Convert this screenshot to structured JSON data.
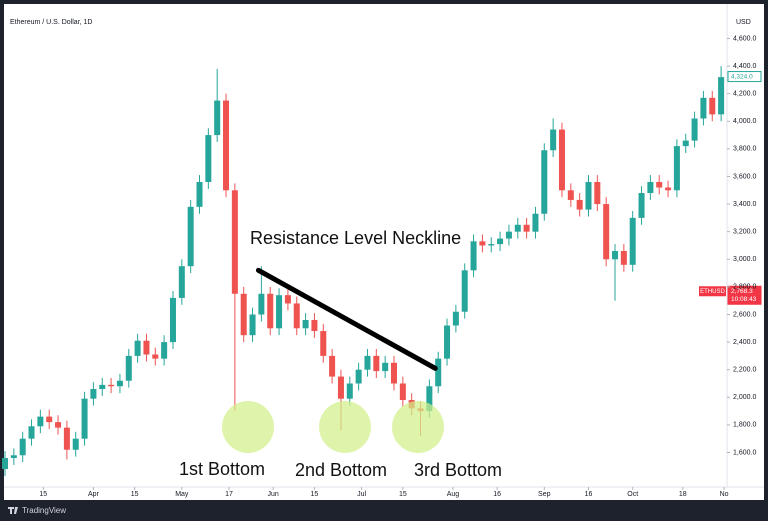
{
  "chart_data": {
    "type": "candlestick",
    "title": "Ethereum / U.S. Dollar, 1D",
    "currency": "USD",
    "up_color": "#26a69a",
    "down_color": "#ef5350",
    "grid": false,
    "x": [
      1,
      4,
      7,
      10,
      13,
      16,
      19,
      22,
      25,
      28,
      31,
      34,
      37,
      40,
      43,
      46,
      49,
      52,
      55,
      58,
      61,
      64,
      67,
      70,
      73,
      76,
      79,
      82,
      85,
      88,
      91,
      94,
      97,
      100,
      103,
      106,
      109,
      112,
      115,
      118,
      121,
      124,
      127,
      130,
      133,
      136,
      139,
      142,
      145,
      148,
      151,
      154,
      157,
      160,
      163,
      166,
      169,
      172,
      175,
      178,
      181,
      184,
      187,
      190,
      193,
      196,
      199,
      202,
      205,
      208,
      211,
      214,
      217,
      220,
      223,
      226,
      229,
      232,
      235,
      238,
      241,
      244
    ],
    "open": [
      1480,
      1560,
      1580,
      1700,
      1790,
      1860,
      1820,
      1780,
      1620,
      1700,
      1990,
      2060,
      2090,
      2080,
      2120,
      2300,
      2410,
      2310,
      2280,
      2400,
      2720,
      2950,
      3380,
      3560,
      3900,
      4150,
      3500,
      2750,
      2450,
      2600,
      2750,
      2500,
      2740,
      2680,
      2500,
      2560,
      2480,
      2300,
      2150,
      1990,
      2100,
      2200,
      2300,
      2190,
      2250,
      2100,
      1980,
      1920,
      1900,
      2080,
      2280,
      2520,
      2620,
      2920,
      3130,
      3100,
      3110,
      3150,
      3200,
      3250,
      3200,
      3330,
      3790,
      3940,
      3500,
      3430,
      3360,
      3560,
      3400,
      3000,
      3060,
      2960,
      3300,
      3480,
      3560,
      3520,
      3500,
      3820,
      3860,
      4020,
      4170,
      4050
    ],
    "high": [
      1610,
      1630,
      1750,
      1840,
      1910,
      1910,
      1870,
      1830,
      1750,
      2040,
      2110,
      2140,
      2140,
      2170,
      2350,
      2460,
      2460,
      2360,
      2450,
      2770,
      3000,
      3430,
      3610,
      3950,
      4380,
      4200,
      3550,
      2800,
      2650,
      2950,
      2800,
      2790,
      2790,
      2730,
      2610,
      2610,
      2530,
      2350,
      2200,
      2150,
      2250,
      2350,
      2350,
      2300,
      2300,
      2150,
      2030,
      1970,
      2130,
      2330,
      2570,
      2670,
      2970,
      3180,
      3180,
      3160,
      3200,
      3250,
      3300,
      3300,
      3380,
      3840,
      4020,
      3990,
      3550,
      3480,
      3610,
      3610,
      3450,
      3110,
      3110,
      3350,
      3530,
      3610,
      3610,
      3570,
      3870,
      3910,
      4070,
      4220,
      4220,
      4400
    ],
    "low": [
      1430,
      1510,
      1530,
      1650,
      1740,
      1770,
      1730,
      1550,
      1570,
      1650,
      1940,
      2010,
      2030,
      2030,
      2070,
      2250,
      2260,
      2230,
      2230,
      2350,
      2670,
      2900,
      3330,
      3510,
      3850,
      3450,
      1900,
      2400,
      2400,
      2550,
      2450,
      2450,
      2630,
      2450,
      2450,
      2430,
      2250,
      2100,
      1760,
      1940,
      2050,
      2150,
      2140,
      2140,
      2050,
      1930,
      1870,
      1720,
      1850,
      2030,
      2230,
      2470,
      2570,
      2870,
      3050,
      3050,
      3060,
      3100,
      3150,
      3150,
      3150,
      3280,
      3740,
      3450,
      3380,
      3310,
      3310,
      3350,
      2950,
      2700,
      2910,
      2910,
      3250,
      3430,
      3470,
      3450,
      3450,
      3770,
      3810,
      3970,
      4000,
      4000
    ],
    "close": [
      1560,
      1580,
      1700,
      1790,
      1860,
      1820,
      1780,
      1620,
      1700,
      1990,
      2060,
      2090,
      2080,
      2120,
      2300,
      2410,
      2310,
      2280,
      2400,
      2720,
      2950,
      3380,
      3560,
      3900,
      4150,
      3500,
      2750,
      2450,
      2600,
      2750,
      2500,
      2740,
      2680,
      2500,
      2560,
      2480,
      2300,
      2150,
      1990,
      2100,
      2200,
      2300,
      2190,
      2250,
      2100,
      1980,
      1920,
      1900,
      2080,
      2280,
      2520,
      2620,
      2920,
      3130,
      3100,
      3110,
      3150,
      3200,
      3250,
      3200,
      3330,
      3790,
      3940,
      3500,
      3430,
      3360,
      3560,
      3400,
      3000,
      3060,
      2960,
      3300,
      3480,
      3560,
      3520,
      3500,
      3820,
      3860,
      4020,
      4170,
      4050,
      4320
    ],
    "xlim": [
      1,
      246
    ],
    "xticks": [
      {
        "value": 14,
        "label": "15"
      },
      {
        "value": 31,
        "label": "Apr"
      },
      {
        "value": 45,
        "label": "15"
      },
      {
        "value": 61,
        "label": "May"
      },
      {
        "value": 77,
        "label": "17"
      },
      {
        "value": 92,
        "label": "Jun"
      },
      {
        "value": 106,
        "label": "15"
      },
      {
        "value": 122,
        "label": "Jul"
      },
      {
        "value": 136,
        "label": "15"
      },
      {
        "value": 153,
        "label": "Aug"
      },
      {
        "value": 168,
        "label": "16"
      },
      {
        "value": 184,
        "label": "Sep"
      },
      {
        "value": 199,
        "label": "16"
      },
      {
        "value": 214,
        "label": "Oct"
      },
      {
        "value": 231,
        "label": "18"
      },
      {
        "value": 245,
        "label": "No"
      }
    ],
    "ylim": [
      1350,
      4770
    ],
    "yticks": [
      {
        "value": 1600,
        "label": "1,600.0"
      },
      {
        "value": 1800,
        "label": "1,800.0"
      },
      {
        "value": 2000,
        "label": "2,000.0"
      },
      {
        "value": 2200,
        "label": "2,200.0"
      },
      {
        "value": 2400,
        "label": "2,400.0"
      },
      {
        "value": 2600,
        "label": "2,600.0"
      },
      {
        "value": 2800,
        "label": "2,800.0"
      },
      {
        "value": 3000,
        "label": "3,000.0"
      },
      {
        "value": 3200,
        "label": "3,200.0"
      },
      {
        "value": 3400,
        "label": "3,400.0"
      },
      {
        "value": 3600,
        "label": "3,600.0"
      },
      {
        "value": 3800,
        "label": "3,800.0"
      },
      {
        "value": 4000,
        "label": "4,000.0"
      },
      {
        "value": 4200,
        "label": "4,200.0"
      },
      {
        "value": 4400,
        "label": "4,400.0"
      },
      {
        "value": 4600,
        "label": "4,600.0"
      }
    ],
    "price_tags": [
      {
        "value": 4324,
        "label": "4,324.0",
        "color": "#26a69a"
      },
      {
        "value": 2768.3,
        "label": "2,768.3",
        "symbol": "ETHUSD",
        "countdown": "10:08:43",
        "color": "#f23645"
      }
    ],
    "trendline": {
      "label": "Resistance Level Neckline",
      "x": [
        87,
        147
      ],
      "y": [
        2920,
        2210
      ],
      "color": "#000000"
    },
    "annotations": [
      "1st Bottom",
      "2nd Bottom",
      "3rd Bottom"
    ]
  },
  "footer": {
    "brand": "TradingView"
  }
}
